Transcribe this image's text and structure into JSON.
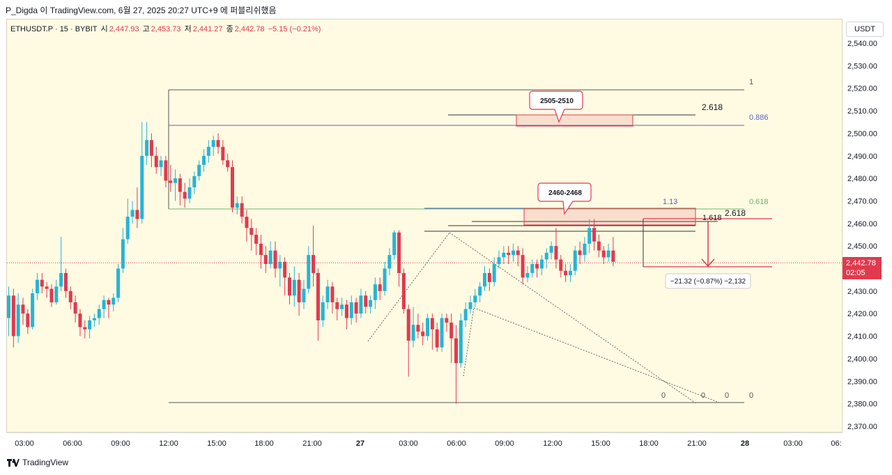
{
  "caption": "P_Digda 이 TradingView.com, 6월 27, 2025 20:27 UTC+9 에 퍼블리쉬했음",
  "symbol": {
    "name": "ETHUSDT.P · 15 · BYBIT",
    "open_label": "시",
    "open": "2,447.93",
    "high_label": "고",
    "high": "2,453.73",
    "low_label": "저",
    "low": "2,441.27",
    "close_label": "종",
    "close": "2,442.78",
    "change": "−5.15 (−0.21%)"
  },
  "price_tag": {
    "price": "2,442.78",
    "countdown": "02:05"
  },
  "footer": {
    "brand": "TradingView"
  },
  "colors": {
    "up": "#26b4d6",
    "down": "#e03a4e",
    "background": "#fffbe3",
    "fib_blue": "#5b5fc7",
    "fib_green": "#6bb86a"
  },
  "chart_data": {
    "type": "candlestick",
    "title": "ETHUSDT.P · 15 · BYBIT",
    "y_unit": "USDT",
    "ylim": [
      2365,
      2547
    ],
    "y_ticks": [
      "2,540.00",
      "2,530.00",
      "2,520.00",
      "2,510.00",
      "2,500.00",
      "2,490.00",
      "2,480.00",
      "2,470.00",
      "2,460.00",
      "2,450.00",
      "2,440.00",
      "2,430.00",
      "2,420.00",
      "2,410.00",
      "2,400.00",
      "2,390.00",
      "2,380.00",
      "2,370.00"
    ],
    "x_ticks": [
      "03:00",
      "06:00",
      "09:00",
      "12:00",
      "15:00",
      "18:00",
      "21:00",
      "27",
      "03:00",
      "06:00",
      "09:00",
      "12:00",
      "15:00",
      "18:00",
      "21:00",
      "28",
      "03:00",
      "06:"
    ],
    "candles": [
      [
        2418,
        2428,
        2410,
        2432
      ],
      [
        2428,
        2410,
        2405,
        2431
      ],
      [
        2410,
        2424,
        2407,
        2429
      ],
      [
        2424,
        2420,
        2415,
        2427
      ],
      [
        2420,
        2414,
        2411,
        2422
      ],
      [
        2414,
        2429,
        2413,
        2431
      ],
      [
        2429,
        2435,
        2426,
        2438
      ],
      [
        2435,
        2432,
        2429,
        2438
      ],
      [
        2432,
        2431,
        2427,
        2434
      ],
      [
        2431,
        2425,
        2423,
        2433
      ],
      [
        2425,
        2432,
        2424,
        2435
      ],
      [
        2432,
        2438,
        2430,
        2454
      ],
      [
        2438,
        2430,
        2427,
        2440
      ],
      [
        2430,
        2425,
        2422,
        2432
      ],
      [
        2425,
        2420,
        2416,
        2428
      ],
      [
        2420,
        2414,
        2410,
        2422
      ],
      [
        2414,
        2413,
        2409,
        2417
      ],
      [
        2413,
        2417,
        2409,
        2419
      ],
      [
        2417,
        2418,
        2414,
        2420
      ],
      [
        2418,
        2422,
        2415,
        2424
      ],
      [
        2422,
        2426,
        2418,
        2428
      ],
      [
        2426,
        2424,
        2418,
        2427
      ],
      [
        2424,
        2427,
        2421,
        2429
      ],
      [
        2427,
        2440,
        2425,
        2442
      ],
      [
        2440,
        2453,
        2438,
        2458
      ],
      [
        2453,
        2463,
        2451,
        2471
      ],
      [
        2463,
        2466,
        2460,
        2470
      ],
      [
        2466,
        2462,
        2458,
        2476
      ],
      [
        2462,
        2490,
        2460,
        2505
      ],
      [
        2490,
        2497,
        2486,
        2505
      ],
      [
        2497,
        2490,
        2485,
        2500
      ],
      [
        2490,
        2485,
        2482,
        2494
      ],
      [
        2485,
        2488,
        2481,
        2490
      ],
      [
        2488,
        2479,
        2476,
        2490
      ],
      [
        2479,
        2478,
        2474,
        2486
      ],
      [
        2478,
        2480,
        2470,
        2484
      ],
      [
        2480,
        2474,
        2468,
        2482
      ],
      [
        2474,
        2471,
        2467,
        2478
      ],
      [
        2471,
        2476,
        2469,
        2480
      ],
      [
        2476,
        2481,
        2473,
        2483
      ],
      [
        2481,
        2486,
        2479,
        2488
      ],
      [
        2486,
        2490,
        2483,
        2493
      ],
      [
        2490,
        2494,
        2487,
        2497
      ],
      [
        2494,
        2497,
        2490,
        2499
      ],
      [
        2497,
        2494,
        2491,
        2500
      ],
      [
        2494,
        2488,
        2486,
        2497
      ],
      [
        2488,
        2485,
        2483,
        2491
      ],
      [
        2485,
        2467,
        2465,
        2488
      ],
      [
        2467,
        2469,
        2464,
        2472
      ],
      [
        2469,
        2463,
        2460,
        2472
      ],
      [
        2463,
        2458,
        2452,
        2466
      ],
      [
        2458,
        2455,
        2448,
        2462
      ],
      [
        2455,
        2451,
        2446,
        2458
      ],
      [
        2451,
        2446,
        2440,
        2455
      ],
      [
        2446,
        2442,
        2438,
        2450
      ],
      [
        2442,
        2448,
        2440,
        2452
      ],
      [
        2448,
        2440,
        2436,
        2452
      ],
      [
        2440,
        2443,
        2432,
        2446
      ],
      [
        2443,
        2436,
        2428,
        2445
      ],
      [
        2436,
        2428,
        2424,
        2438
      ],
      [
        2428,
        2435,
        2423,
        2441
      ],
      [
        2435,
        2425,
        2419,
        2438
      ],
      [
        2425,
        2431,
        2422,
        2435
      ],
      [
        2431,
        2446,
        2429,
        2450
      ],
      [
        2446,
        2438,
        2432,
        2459
      ],
      [
        2438,
        2417,
        2408,
        2440
      ],
      [
        2417,
        2425,
        2414,
        2428
      ],
      [
        2425,
        2432,
        2422,
        2435
      ],
      [
        2432,
        2425,
        2420,
        2434
      ],
      [
        2425,
        2422,
        2417,
        2427
      ],
      [
        2422,
        2424,
        2419,
        2427
      ],
      [
        2424,
        2418,
        2413,
        2426
      ],
      [
        2418,
        2425,
        2415,
        2428
      ],
      [
        2425,
        2420,
        2416,
        2427
      ],
      [
        2420,
        2428,
        2418,
        2431
      ],
      [
        2428,
        2423,
        2420,
        2430
      ],
      [
        2423,
        2426,
        2420,
        2428
      ],
      [
        2426,
        2433,
        2422,
        2436
      ],
      [
        2433,
        2430,
        2426,
        2436
      ],
      [
        2430,
        2440,
        2428,
        2443
      ],
      [
        2440,
        2446,
        2437,
        2449
      ],
      [
        2446,
        2456,
        2444,
        2457
      ],
      [
        2456,
        2438,
        2432,
        2457
      ],
      [
        2438,
        2422,
        2420,
        2440
      ],
      [
        2422,
        2408,
        2392,
        2424
      ],
      [
        2408,
        2415,
        2405,
        2423
      ],
      [
        2415,
        2412,
        2409,
        2420
      ],
      [
        2412,
        2410,
        2406,
        2416
      ],
      [
        2410,
        2418,
        2408,
        2420
      ],
      [
        2418,
        2413,
        2404,
        2420
      ],
      [
        2413,
        2405,
        2403,
        2416
      ],
      [
        2405,
        2418,
        2403,
        2420
      ],
      [
        2418,
        2416,
        2412,
        2420
      ],
      [
        2416,
        2409,
        2398,
        2420
      ],
      [
        2409,
        2398,
        2380,
        2415
      ],
      [
        2398,
        2417,
        2396,
        2420
      ],
      [
        2417,
        2422,
        2414,
        2425
      ],
      [
        2422,
        2425,
        2420,
        2428
      ],
      [
        2425,
        2428,
        2423,
        2431
      ],
      [
        2428,
        2432,
        2425,
        2434
      ],
      [
        2432,
        2438,
        2430,
        2441
      ],
      [
        2438,
        2434,
        2430,
        2440
      ],
      [
        2434,
        2442,
        2432,
        2445
      ],
      [
        2442,
        2445,
        2440,
        2448
      ],
      [
        2445,
        2447,
        2442,
        2450
      ],
      [
        2447,
        2446,
        2442,
        2450
      ],
      [
        2446,
        2448,
        2443,
        2451
      ],
      [
        2448,
        2446,
        2441,
        2450
      ],
      [
        2446,
        2436,
        2433,
        2449
      ],
      [
        2436,
        2438,
        2434,
        2441
      ],
      [
        2438,
        2442,
        2436,
        2444
      ],
      [
        2442,
        2440,
        2436,
        2444
      ],
      [
        2440,
        2444,
        2437,
        2446
      ],
      [
        2444,
        2447,
        2440,
        2449
      ],
      [
        2447,
        2450,
        2444,
        2452
      ],
      [
        2450,
        2444,
        2440,
        2458
      ],
      [
        2444,
        2439,
        2436,
        2446
      ],
      [
        2439,
        2437,
        2434,
        2442
      ],
      [
        2437,
        2439,
        2434,
        2442
      ],
      [
        2439,
        2448,
        2437,
        2450
      ],
      [
        2448,
        2446,
        2442,
        2452
      ],
      [
        2446,
        2451,
        2443,
        2454
      ],
      [
        2451,
        2458,
        2447,
        2462
      ],
      [
        2458,
        2452,
        2448,
        2462
      ],
      [
        2452,
        2448,
        2445,
        2455
      ],
      [
        2448,
        2445,
        2442,
        2450
      ],
      [
        2445,
        2448,
        2443,
        2451
      ],
      [
        2448,
        2443,
        2441,
        2454
      ]
    ],
    "fib_levels": [
      "1",
      "0.886",
      "0.618",
      "0"
    ],
    "extension_labels": [
      "2.618",
      "1.13",
      "1.618",
      "2.618",
      "0",
      "0",
      "0"
    ],
    "zones": [
      "2505-2510",
      "2460-2468"
    ],
    "measure_label": "−21.32 (−0.87%) −2,132"
  }
}
